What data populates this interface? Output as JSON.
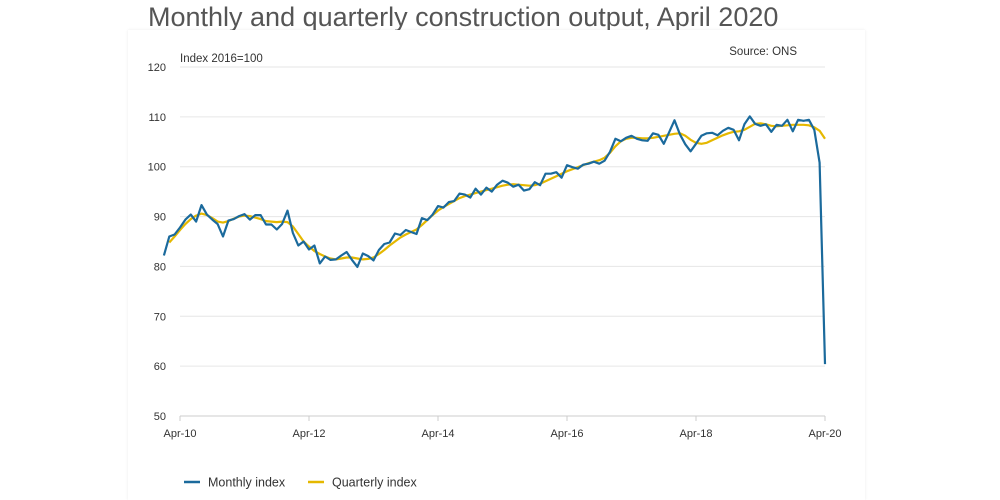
{
  "title": "Monthly and quarterly construction output, April 2020",
  "colors": {
    "monthly": "#1b6a9c",
    "quarterly": "#e5b800",
    "grid": "#e6e6e6",
    "axis": "#cccccc"
  },
  "chart_data": {
    "type": "line",
    "title": "Monthly and quarterly construction output, April 2020",
    "source": "Source: ONS",
    "ylabel": "Index 2016=100",
    "ylim": [
      50,
      120
    ],
    "yticks": [
      50,
      60,
      70,
      80,
      90,
      100,
      110,
      120
    ],
    "xlim": [
      "2010-04",
      "2020-04"
    ],
    "xticks": [
      "Apr-10",
      "Apr-12",
      "Apr-14",
      "Apr-16",
      "Apr-18",
      "Apr-20"
    ],
    "grid": true,
    "legend_position": "bottom-left",
    "series": [
      {
        "name": "Monthly index",
        "x": [
          "2010-01",
          "2010-02",
          "2010-03",
          "2010-04",
          "2010-05",
          "2010-06",
          "2010-07",
          "2010-08",
          "2010-09",
          "2010-10",
          "2010-11",
          "2010-12",
          "2011-01",
          "2011-02",
          "2011-03",
          "2011-04",
          "2011-05",
          "2011-06",
          "2011-07",
          "2011-08",
          "2011-09",
          "2011-10",
          "2011-11",
          "2011-12",
          "2012-01",
          "2012-02",
          "2012-03",
          "2012-04",
          "2012-05",
          "2012-06",
          "2012-07",
          "2012-08",
          "2012-09",
          "2012-10",
          "2012-11",
          "2012-12",
          "2013-01",
          "2013-02",
          "2013-03",
          "2013-04",
          "2013-05",
          "2013-06",
          "2013-07",
          "2013-08",
          "2013-09",
          "2013-10",
          "2013-11",
          "2013-12",
          "2014-01",
          "2014-02",
          "2014-03",
          "2014-04",
          "2014-05",
          "2014-06",
          "2014-07",
          "2014-08",
          "2014-09",
          "2014-10",
          "2014-11",
          "2014-12",
          "2015-01",
          "2015-02",
          "2015-03",
          "2015-04",
          "2015-05",
          "2015-06",
          "2015-07",
          "2015-08",
          "2015-09",
          "2015-10",
          "2015-11",
          "2015-12",
          "2016-01",
          "2016-02",
          "2016-03",
          "2016-04",
          "2016-05",
          "2016-06",
          "2016-07",
          "2016-08",
          "2016-09",
          "2016-10",
          "2016-11",
          "2016-12",
          "2017-01",
          "2017-02",
          "2017-03",
          "2017-04",
          "2017-05",
          "2017-06",
          "2017-07",
          "2017-08",
          "2017-09",
          "2017-10",
          "2017-11",
          "2017-12",
          "2018-01",
          "2018-02",
          "2018-03",
          "2018-04",
          "2018-05",
          "2018-06",
          "2018-07",
          "2018-08",
          "2018-09",
          "2018-10",
          "2018-11",
          "2018-12",
          "2019-01",
          "2019-02",
          "2019-03",
          "2019-04",
          "2019-05",
          "2019-06",
          "2019-07",
          "2019-08",
          "2019-09",
          "2019-10",
          "2019-11",
          "2019-12",
          "2020-01",
          "2020-02",
          "2020-03",
          "2020-04"
        ],
        "values": [
          82.2,
          86.0,
          86.4,
          87.8,
          89.4,
          90.4,
          89.0,
          92.3,
          90.4,
          89.4,
          88.5,
          86.0,
          89.2,
          89.5,
          90.1,
          90.5,
          89.4,
          90.3,
          90.3,
          88.4,
          88.4,
          87.4,
          88.5,
          91.2,
          86.7,
          84.2,
          85.0,
          83.4,
          84.2,
          80.6,
          82.0,
          81.3,
          81.4,
          82.2,
          82.9,
          81.3,
          79.9,
          82.6,
          82.1,
          81.2,
          83.3,
          84.5,
          84.8,
          86.6,
          86.3,
          87.3,
          86.9,
          86.5,
          89.7,
          89.3,
          90.4,
          92.1,
          91.8,
          92.9,
          93.1,
          94.6,
          94.4,
          93.8,
          95.6,
          94.4,
          95.8,
          95.0,
          96.4,
          97.2,
          96.8,
          96.0,
          96.4,
          95.2,
          95.5,
          96.9,
          96.3,
          98.6,
          98.6,
          98.9,
          97.8,
          100.3,
          99.9,
          99.6,
          100.4,
          100.6,
          101.0,
          100.6,
          101.2,
          103.0,
          105.6,
          105.1,
          105.8,
          106.2,
          105.6,
          105.3,
          105.2,
          106.7,
          106.4,
          104.6,
          106.9,
          109.3,
          106.5,
          104.5,
          103.1,
          104.6,
          106.2,
          106.7,
          106.8,
          106.3,
          107.2,
          107.8,
          107.4,
          105.3,
          108.5,
          110.1,
          108.6,
          108.2,
          108.5,
          107.0,
          108.4,
          108.2,
          109.4,
          107.1,
          109.4,
          109.2,
          109.4,
          107.4,
          100.8,
          60.4
        ]
      },
      {
        "name": "Quarterly index",
        "x": [
          "2010-02",
          "2010-03",
          "2010-04",
          "2010-05",
          "2010-06",
          "2010-07",
          "2010-08",
          "2010-09",
          "2010-10",
          "2010-11",
          "2010-12",
          "2011-01",
          "2011-02",
          "2011-03",
          "2011-04",
          "2011-05",
          "2011-06",
          "2011-07",
          "2011-08",
          "2011-09",
          "2011-10",
          "2011-11",
          "2011-12",
          "2012-01",
          "2012-02",
          "2012-03",
          "2012-04",
          "2012-05",
          "2012-06",
          "2012-07",
          "2012-08",
          "2012-09",
          "2012-10",
          "2012-11",
          "2012-12",
          "2013-01",
          "2013-02",
          "2013-03",
          "2013-04",
          "2013-05",
          "2013-06",
          "2013-07",
          "2013-08",
          "2013-09",
          "2013-10",
          "2013-11",
          "2013-12",
          "2014-01",
          "2014-02",
          "2014-03",
          "2014-04",
          "2014-05",
          "2014-06",
          "2014-07",
          "2014-08",
          "2014-09",
          "2014-10",
          "2014-11",
          "2014-12",
          "2015-01",
          "2015-02",
          "2015-03",
          "2015-04",
          "2015-05",
          "2015-06",
          "2015-07",
          "2015-08",
          "2015-09",
          "2015-10",
          "2015-11",
          "2015-12",
          "2016-01",
          "2016-02",
          "2016-03",
          "2016-04",
          "2016-05",
          "2016-06",
          "2016-07",
          "2016-08",
          "2016-09",
          "2016-10",
          "2016-11",
          "2016-12",
          "2017-01",
          "2017-02",
          "2017-03",
          "2017-04",
          "2017-05",
          "2017-06",
          "2017-07",
          "2017-08",
          "2017-09",
          "2017-10",
          "2017-11",
          "2017-12",
          "2018-01",
          "2018-02",
          "2018-03",
          "2018-04",
          "2018-05",
          "2018-06",
          "2018-07",
          "2018-08",
          "2018-09",
          "2018-10",
          "2018-11",
          "2018-12",
          "2019-01",
          "2019-02",
          "2019-03",
          "2019-04",
          "2019-05",
          "2019-06",
          "2019-07",
          "2019-08",
          "2019-09",
          "2019-10",
          "2019-11",
          "2019-12",
          "2020-01",
          "2020-02",
          "2020-03",
          "2020-04"
        ],
        "values": [
          84.8,
          86.0,
          87.3,
          88.5,
          89.5,
          90.2,
          90.6,
          90.3,
          89.7,
          89.0,
          88.8,
          89.1,
          89.6,
          90.0,
          90.2,
          90.1,
          89.8,
          89.5,
          89.1,
          89.0,
          88.9,
          89.0,
          88.9,
          88.0,
          86.5,
          85.0,
          84.0,
          83.1,
          82.5,
          82.0,
          81.6,
          81.4,
          81.6,
          81.8,
          81.8,
          81.6,
          81.4,
          81.5,
          81.8,
          82.5,
          83.3,
          84.2,
          85.0,
          85.8,
          86.4,
          86.9,
          87.4,
          88.3,
          89.3,
          90.3,
          91.2,
          91.9,
          92.5,
          93.1,
          93.7,
          94.1,
          94.4,
          94.7,
          95.0,
          95.3,
          95.6,
          95.9,
          96.2,
          96.4,
          96.5,
          96.4,
          96.3,
          96.2,
          96.3,
          96.6,
          97.1,
          97.6,
          98.1,
          98.6,
          99.1,
          99.5,
          99.9,
          100.3,
          100.7,
          101.0,
          101.3,
          101.8,
          102.8,
          104.1,
          105.1,
          105.6,
          105.8,
          105.8,
          105.7,
          105.7,
          105.8,
          106.0,
          106.2,
          106.4,
          106.6,
          106.7,
          106.2,
          105.4,
          104.8,
          104.6,
          104.8,
          105.3,
          105.8,
          106.3,
          106.7,
          107.0,
          107.1,
          107.4,
          108.0,
          108.6,
          108.7,
          108.5,
          108.2,
          108.1,
          108.2,
          108.3,
          108.4,
          108.4,
          108.4,
          108.3,
          107.9,
          107.2,
          105.6
        ]
      }
    ]
  }
}
